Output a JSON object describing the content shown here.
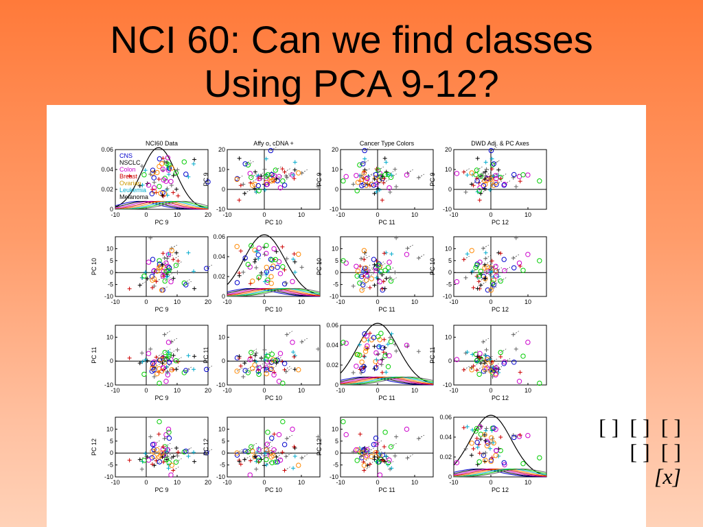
{
  "slide": {
    "title_line1": "NCI 60:  Can we find classes",
    "title_line2": "Using PCA 9-12?"
  },
  "notation": {
    "row1": "[ ]  [ ]  [ ]",
    "row2": "[ ]  [ ]",
    "row3": "[x]"
  },
  "chart_data": {
    "type": "scatter",
    "grid_layout": "4x4 scatterplot matrix with density plots on the diagonal",
    "column_titles": [
      "NCI60 Data",
      "Affy o,   cDNA +",
      "Cancer Type Colors",
      "DWD Adj. &  PC Axes"
    ],
    "variables": [
      "PC 9",
      "PC 10",
      "PC 11",
      "PC 12"
    ],
    "ranges": {
      "PC 9": [
        -10,
        20
      ],
      "PC 10": [
        -10,
        15
      ],
      "PC 11": [
        -10,
        15
      ],
      "PC 12": [
        -10,
        15
      ]
    },
    "ticks": {
      "PC 9": [
        -10,
        0,
        10,
        20
      ],
      "PC 10": [
        -10,
        -5,
        0,
        5,
        10
      ],
      "PC 11": [
        -10,
        0,
        10
      ],
      "PC 12": [
        -10,
        -5,
        0,
        5,
        10
      ],
      "score_vertical": [
        -10,
        0,
        10,
        20
      ]
    },
    "density_ylim": [
      0,
      0.06
    ],
    "density_ticks": [
      0,
      0.02,
      0.04,
      0.06
    ],
    "density_tick_labels": [
      "0",
      "0.02",
      "0.04",
      "0.06"
    ],
    "legend": {
      "placement": "upper-left of first panel",
      "entries": [
        {
          "label": "CNS",
          "color": "#0000cc"
        },
        {
          "label": "NSCLC",
          "color": "#000000"
        },
        {
          "label": "Colon",
          "color": "#cc00cc"
        },
        {
          "label": "Breast",
          "color": "#cc0000"
        },
        {
          "label": "Ovarian",
          "color": "#cc9900"
        },
        {
          "label": "Leukemia",
          "color": "#00aacc"
        },
        {
          "label": "Melanoma",
          "color": "#000000"
        }
      ]
    },
    "class_colors": [
      "#0000cc",
      "#000000",
      "#cc00cc",
      "#cc0000",
      "#ff8800",
      "#00aacc",
      "#00cc00",
      "#666666"
    ],
    "markers": {
      "affy": "o",
      "cdna": "+"
    }
  }
}
